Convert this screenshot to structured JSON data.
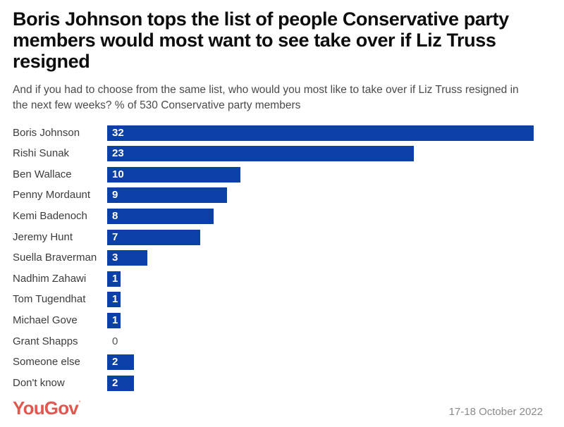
{
  "header": {
    "title": "Boris Johnson tops the list of people Conservative party members would most want to see take over if Liz Truss resigned",
    "subtitle": "And if you had to choose from the same list, who would you most like to take over if Liz Truss resigned in the next few weeks? % of 530 Conservative party members"
  },
  "chart_data": {
    "type": "bar",
    "orientation": "horizontal",
    "title": "Boris Johnson tops the list of people Conservative party members would most want to see take over if Liz Truss resigned",
    "categories": [
      "Boris Johnson",
      "Rishi Sunak",
      "Ben Wallace",
      "Penny Mordaunt",
      "Kemi Badenoch",
      "Jeremy Hunt",
      "Suella Braverman",
      "Nadhim Zahawi",
      "Tom Tugendhat",
      "Michael Gove",
      "Grant Shapps",
      "Someone else",
      "Don't know"
    ],
    "values": [
      32,
      23,
      10,
      9,
      8,
      7,
      3,
      1,
      1,
      1,
      0,
      2,
      2
    ],
    "xlabel": "",
    "ylabel": "",
    "xlim": [
      0,
      32
    ],
    "grid": false,
    "legend": false,
    "value_labels": "inside-bar-start",
    "bar_color": "#0b41a6",
    "zero_label_color": "#555555"
  },
  "footer": {
    "logo_text": "YouGov",
    "logo_tm": "'",
    "logo_color": "#e0584f",
    "date": "17-18 October 2022"
  }
}
